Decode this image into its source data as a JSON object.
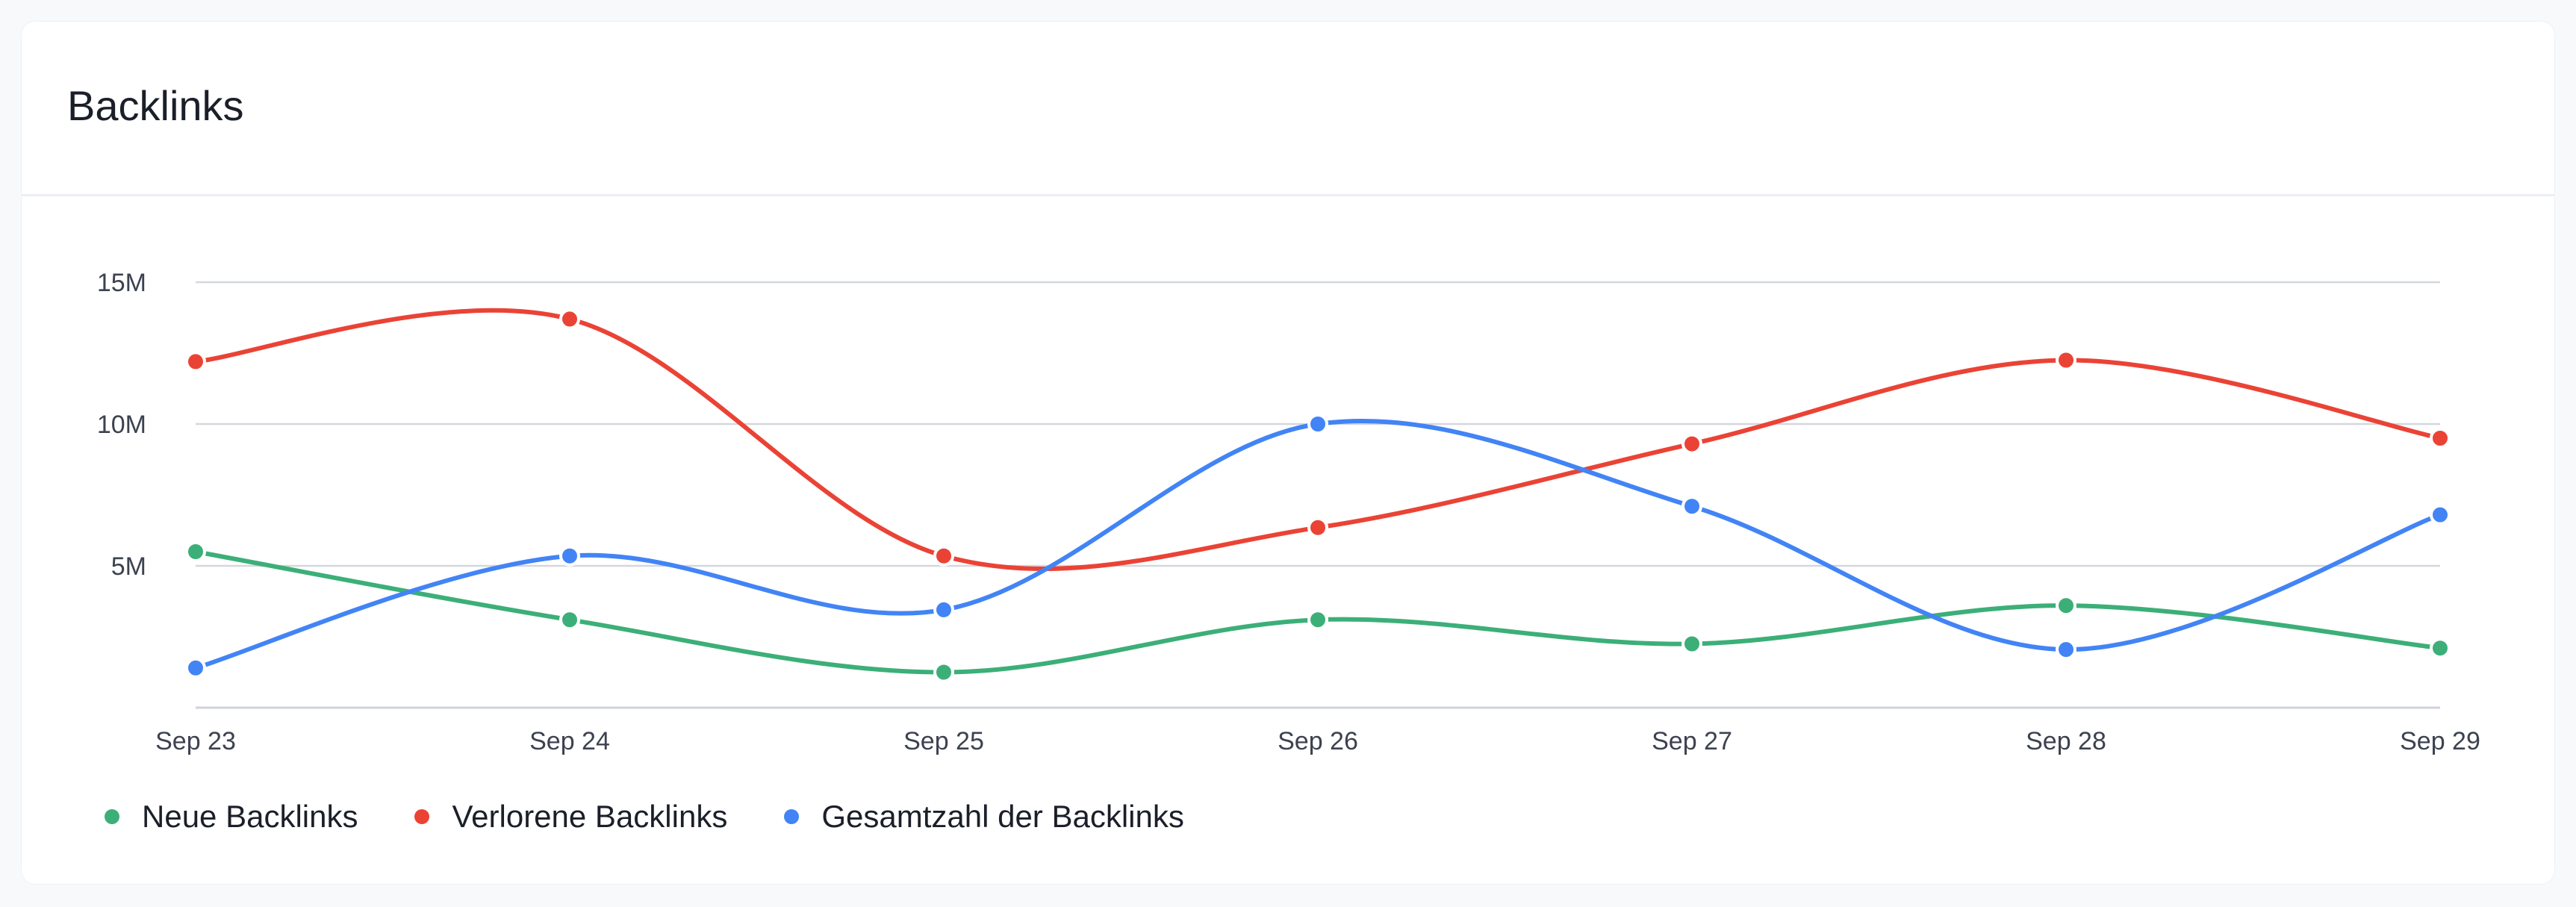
{
  "card": {
    "title": "Backlinks"
  },
  "chart_data": {
    "type": "line",
    "title": "Backlinks",
    "categories": [
      "Sep 23",
      "Sep 24",
      "Sep 25",
      "Sep 26",
      "Sep 27",
      "Sep 28",
      "Sep 29"
    ],
    "y_ticks": [
      {
        "value": 15000000,
        "label": "15M"
      },
      {
        "value": 10000000,
        "label": "10M"
      },
      {
        "value": 5000000,
        "label": "5M"
      }
    ],
    "ylim": [
      0,
      15000000
    ],
    "grid": true,
    "legend_position": "bottom-left",
    "smooth": true,
    "series": [
      {
        "name": "Neue Backlinks",
        "color": "#3caf78",
        "values": [
          5500000,
          3100000,
          1250000,
          3100000,
          2250000,
          3600000,
          2100000
        ]
      },
      {
        "name": "Verlorene Backlinks",
        "color": "#ea4335",
        "values": [
          12200000,
          13700000,
          5350000,
          6350000,
          9300000,
          12250000,
          9500000
        ]
      },
      {
        "name": "Gesamtzahl der Backlinks",
        "color": "#4284f5",
        "values": [
          1400000,
          5350000,
          3450000,
          10000000,
          7100000,
          2050000,
          6800000
        ]
      }
    ]
  }
}
